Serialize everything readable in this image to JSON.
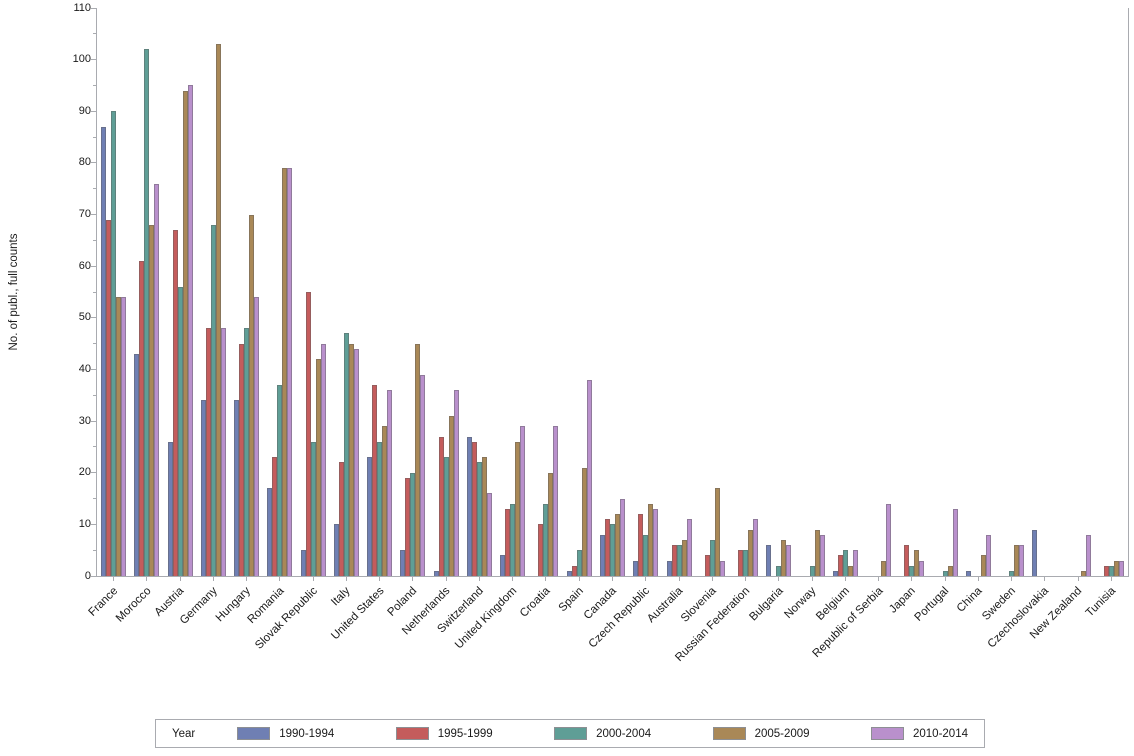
{
  "chart_data": {
    "type": "bar",
    "title": "",
    "xlabel": "",
    "ylabel": "No. of publ., full counts",
    "ylim": [
      0,
      110
    ],
    "yticks": [
      0,
      10,
      20,
      30,
      40,
      50,
      60,
      70,
      80,
      90,
      100,
      110
    ],
    "grid": false,
    "legend_title": "Year",
    "legend_position": "bottom",
    "categories": [
      "France",
      "Morocco",
      "Austria",
      "Germany",
      "Hungary",
      "Romania",
      "Slovak Republic",
      "Italy",
      "United States",
      "Poland",
      "Netherlands",
      "Switzerland",
      "United Kingdom",
      "Croatia",
      "Spain",
      "Canada",
      "Czech Republic",
      "Australia",
      "Slovenia",
      "Russian Federation",
      "Bulgaria",
      "Norway",
      "Belgium",
      "Republic of Serbia",
      "Japan",
      "Portugal",
      "China",
      "Sweden",
      "Czechoslovakia",
      "New Zealand",
      "Tunisia"
    ],
    "series": [
      {
        "name": "1990-1994",
        "color": "#6f7fb3",
        "values": [
          87,
          43,
          26,
          34,
          34,
          17,
          5,
          10,
          23,
          5,
          1,
          27,
          4,
          0,
          1,
          8,
          3,
          3,
          0,
          0,
          6,
          0,
          1,
          0,
          0,
          0,
          1,
          0,
          9,
          0,
          0
        ]
      },
      {
        "name": "1995-1999",
        "color": "#c45c5c",
        "values": [
          69,
          61,
          67,
          48,
          45,
          23,
          55,
          22,
          37,
          19,
          27,
          26,
          13,
          10,
          2,
          11,
          12,
          6,
          4,
          5,
          0,
          0,
          4,
          0,
          6,
          0,
          0,
          0,
          0,
          0,
          2
        ]
      },
      {
        "name": "2000-2004",
        "color": "#5f9e96",
        "values": [
          90,
          102,
          56,
          68,
          48,
          37,
          26,
          47,
          26,
          20,
          23,
          22,
          14,
          14,
          5,
          10,
          8,
          6,
          7,
          5,
          2,
          2,
          5,
          0,
          2,
          1,
          0,
          1,
          0,
          0,
          2
        ]
      },
      {
        "name": "2005-2009",
        "color": "#a98857",
        "values": [
          54,
          68,
          94,
          103,
          70,
          79,
          42,
          45,
          29,
          45,
          31,
          23,
          26,
          20,
          21,
          12,
          14,
          7,
          17,
          9,
          7,
          9,
          2,
          3,
          5,
          2,
          4,
          6,
          0,
          1,
          3
        ]
      },
      {
        "name": "2010-2014",
        "color": "#b990cc",
        "values": [
          54,
          76,
          95,
          48,
          54,
          79,
          45,
          44,
          36,
          39,
          36,
          16,
          29,
          29,
          38,
          15,
          13,
          11,
          3,
          11,
          6,
          8,
          5,
          14,
          3,
          13,
          8,
          6,
          0,
          8,
          3
        ]
      }
    ]
  }
}
